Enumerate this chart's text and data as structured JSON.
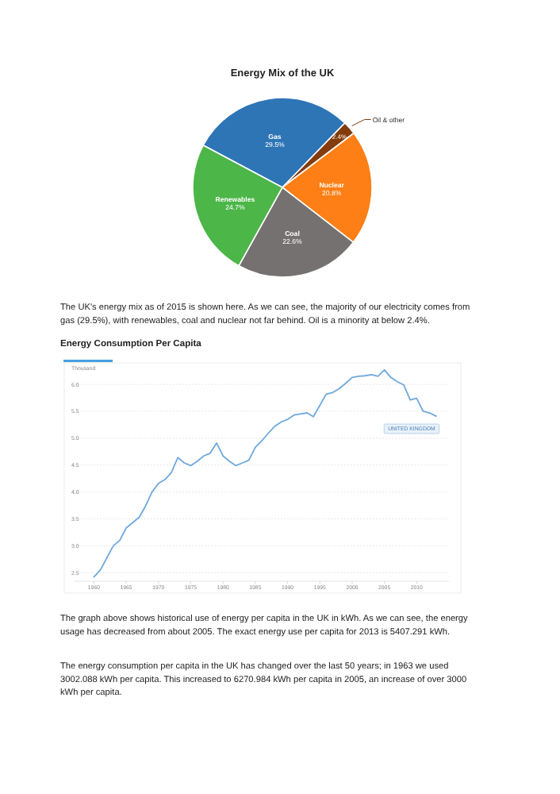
{
  "chart_data": [
    {
      "type": "pie",
      "title": "Energy Mix of the UK",
      "categories": [
        "Gas",
        "Oil & other",
        "Nuclear",
        "Coal",
        "Renewables"
      ],
      "values": [
        29.5,
        2.4,
        20.8,
        22.6,
        24.7
      ],
      "colors": [
        "#2e75b6",
        "#843c0c",
        "#fd7f15",
        "#767171",
        "#4cb648"
      ],
      "value_labels": [
        "29.5%",
        "2.4%",
        "20.8%",
        "22.6%",
        "24.7%"
      ],
      "annotations": [
        "The UK's energy mix as of 2015 is shown here. As we can see, the majority of our electricity comes from gas (29.5%), with renewables, coal and nuclear not far behind. Oil is a minority at below 2.4%."
      ]
    },
    {
      "type": "line",
      "title": "Energy Consumption Per Capita",
      "ylabel": "Thousand",
      "grid": "y",
      "x": [
        1960,
        1961,
        1963,
        1964,
        1965,
        1966,
        1967,
        1968,
        1969,
        1970,
        1971,
        1972,
        1973,
        1974,
        1975,
        1976,
        1977,
        1978,
        1979,
        1980,
        1981,
        1982,
        1983,
        1984,
        1985,
        1986,
        1987,
        1988,
        1989,
        1990,
        1991,
        1992,
        1993,
        1994,
        1995,
        1996,
        1997,
        1998,
        1999,
        2000,
        2001,
        2002,
        2003,
        2004,
        2005,
        2006,
        2007,
        2008,
        2009,
        2010,
        2011,
        2012,
        2013
      ],
      "series": [
        {
          "name": "UNITED KINGDOM",
          "color": "#6fa8dc",
          "values": [
            2.42,
            2.55,
            3.0,
            3.1,
            3.33,
            3.43,
            3.53,
            3.74,
            4.0,
            4.16,
            4.23,
            4.36,
            4.64,
            4.54,
            4.49,
            4.57,
            4.67,
            4.72,
            4.91,
            4.67,
            4.57,
            4.49,
            4.54,
            4.59,
            4.83,
            4.95,
            5.09,
            5.22,
            5.3,
            5.35,
            5.43,
            5.45,
            5.47,
            5.4,
            5.61,
            5.82,
            5.85,
            5.92,
            6.02,
            6.13,
            6.15,
            6.16,
            6.18,
            6.15,
            6.27,
            6.13,
            6.05,
            5.99,
            5.71,
            5.74,
            5.5,
            5.47,
            5.41
          ]
        }
      ],
      "xlim": [
        1957,
        2015
      ],
      "ylim": [
        2.4,
        6.4
      ],
      "xticks": [
        1960,
        1965,
        1970,
        1975,
        1980,
        1985,
        1990,
        1995,
        2000,
        2005,
        2010
      ],
      "yticks": [
        2.5,
        {
          "value": 3,
          "label": "3.0"
        },
        3.5,
        {
          "value": 4,
          "label": "4.0"
        },
        4.5,
        {
          "value": 5,
          "label": "5.0"
        },
        5.5,
        {
          "value": 6,
          "label": "6.0"
        }
      ],
      "annotations": [
        "The graph above shows historical use of energy per capita in the UK in kWh. As we can see, the energy usage has decreased from about 2005. The exact energy use per capita for 2013 is 5407.291 kWh.",
        "The energy consumption per capita in the UK has changed over the last 50 years; in 1963 we used 3002.088 kWh per capita. This increased to 6270.984 kWh per capita in 2005, an increase of over 3000 kWh per capita."
      ]
    }
  ]
}
